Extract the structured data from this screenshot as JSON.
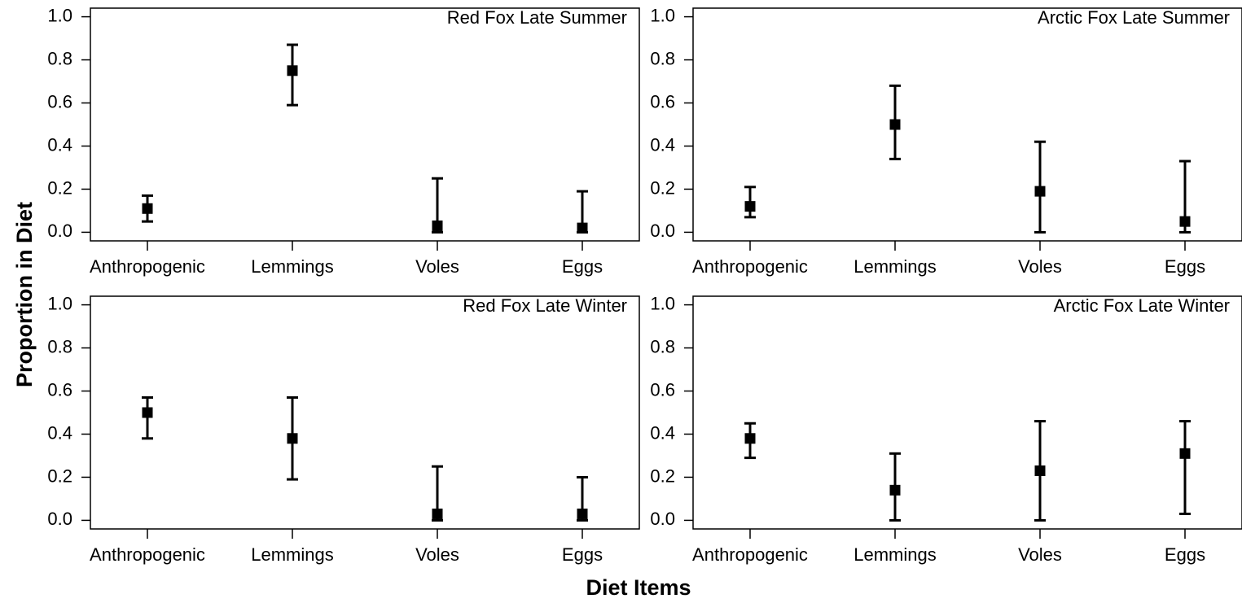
{
  "ylabel": "Proportion in Diet",
  "xlabel": "Diet Items",
  "chart_data": [
    {
      "type": "errorbar",
      "title": "Red Fox Late Summer",
      "categories": [
        "Anthropogenic",
        "Lemmings",
        "Voles",
        "Eggs"
      ],
      "values": [
        0.11,
        0.75,
        0.03,
        0.02
      ],
      "lower": [
        0.05,
        0.59,
        0.0,
        0.0
      ],
      "upper": [
        0.17,
        0.87,
        0.25,
        0.19
      ],
      "color": "#000000",
      "ylim": [
        -0.04,
        1.04
      ],
      "yticks": [
        {
          "value": 0,
          "label": "0.0"
        },
        0.2,
        0.4,
        0.6,
        0.8,
        {
          "value": 1,
          "label": "1.0"
        }
      ]
    },
    {
      "type": "errorbar",
      "title": "Arctic Fox Late Summer",
      "categories": [
        "Anthropogenic",
        "Lemmings",
        "Voles",
        "Eggs"
      ],
      "values": [
        0.12,
        0.5,
        0.19,
        0.05
      ],
      "lower": [
        0.07,
        0.34,
        0.0,
        0.0
      ],
      "upper": [
        0.21,
        0.68,
        0.42,
        0.33
      ],
      "color": "#000000",
      "ylim": [
        -0.04,
        1.04
      ],
      "yticks": [
        {
          "value": 0,
          "label": "0.0"
        },
        0.2,
        0.4,
        0.6,
        0.8,
        {
          "value": 1,
          "label": "1.0"
        }
      ]
    },
    {
      "type": "errorbar",
      "title": "Red Fox Late Winter",
      "categories": [
        "Anthropogenic",
        "Lemmings",
        "Voles",
        "Eggs"
      ],
      "values": [
        0.5,
        0.38,
        0.03,
        0.03
      ],
      "lower": [
        0.38,
        0.19,
        0.0,
        0.0
      ],
      "upper": [
        0.57,
        0.57,
        0.25,
        0.2
      ],
      "color": "#000000",
      "ylim": [
        -0.04,
        1.04
      ],
      "yticks": [
        {
          "value": 0,
          "label": "0.0"
        },
        0.2,
        0.4,
        0.6,
        0.8,
        {
          "value": 1,
          "label": "1.0"
        }
      ]
    },
    {
      "type": "errorbar",
      "title": "Arctic Fox Late Winter",
      "categories": [
        "Anthropogenic",
        "Lemmings",
        "Voles",
        "Eggs"
      ],
      "values": [
        0.38,
        0.14,
        0.23,
        0.31
      ],
      "lower": [
        0.29,
        0.0,
        0.0,
        0.03
      ],
      "upper": [
        0.45,
        0.31,
        0.46,
        0.46
      ],
      "color": "#000000",
      "ylim": [
        -0.04,
        1.04
      ],
      "yticks": [
        {
          "value": 0,
          "label": "0.0"
        },
        0.2,
        0.4,
        0.6,
        0.8,
        {
          "value": 1,
          "label": "1.0"
        }
      ]
    }
  ]
}
